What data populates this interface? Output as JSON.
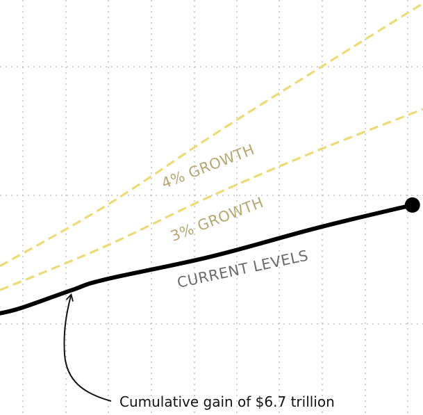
{
  "chart_data": {
    "type": "line",
    "title": "",
    "xlabel": "",
    "ylabel": "",
    "xlim": [
      0,
      100
    ],
    "ylim": [
      0,
      100
    ],
    "grid": true,
    "legend": "none",
    "series": [
      {
        "name": "4% GROWTH",
        "style": "dashed",
        "color": "#eeda73",
        "label_color": "#b7a76f",
        "points": [
          [
            0,
            35.9
          ],
          [
            25,
            50.4
          ],
          [
            50,
            67.2
          ],
          [
            75,
            83.3
          ],
          [
            100,
            99.2
          ]
        ]
      },
      {
        "name": "3% GROWTH",
        "style": "dashed",
        "color": "#eeda73",
        "label_color": "#b7a76f",
        "points": [
          [
            0,
            30.1
          ],
          [
            25,
            40.7
          ],
          [
            50,
            52.8
          ],
          [
            75,
            63.7
          ],
          [
            100,
            73.7
          ]
        ]
      },
      {
        "name": "CURRENT LEVELS",
        "style": "solid",
        "color": "#000000",
        "label_color": "#6b6b6b",
        "points": [
          [
            0,
            24.5
          ],
          [
            5,
            25.8
          ],
          [
            17,
            30.1
          ],
          [
            25,
            32.7
          ],
          [
            50,
            38.2
          ],
          [
            75,
            45.1
          ],
          [
            97.5,
            50.6
          ]
        ],
        "end_marker": true
      }
    ],
    "annotations": [
      {
        "text": "Cumulative gain of $6.7 trillion",
        "target": [
          17,
          29.7
        ]
      }
    ],
    "colors": {
      "grid": "#b5b5b5",
      "background": "#ffffff"
    }
  }
}
